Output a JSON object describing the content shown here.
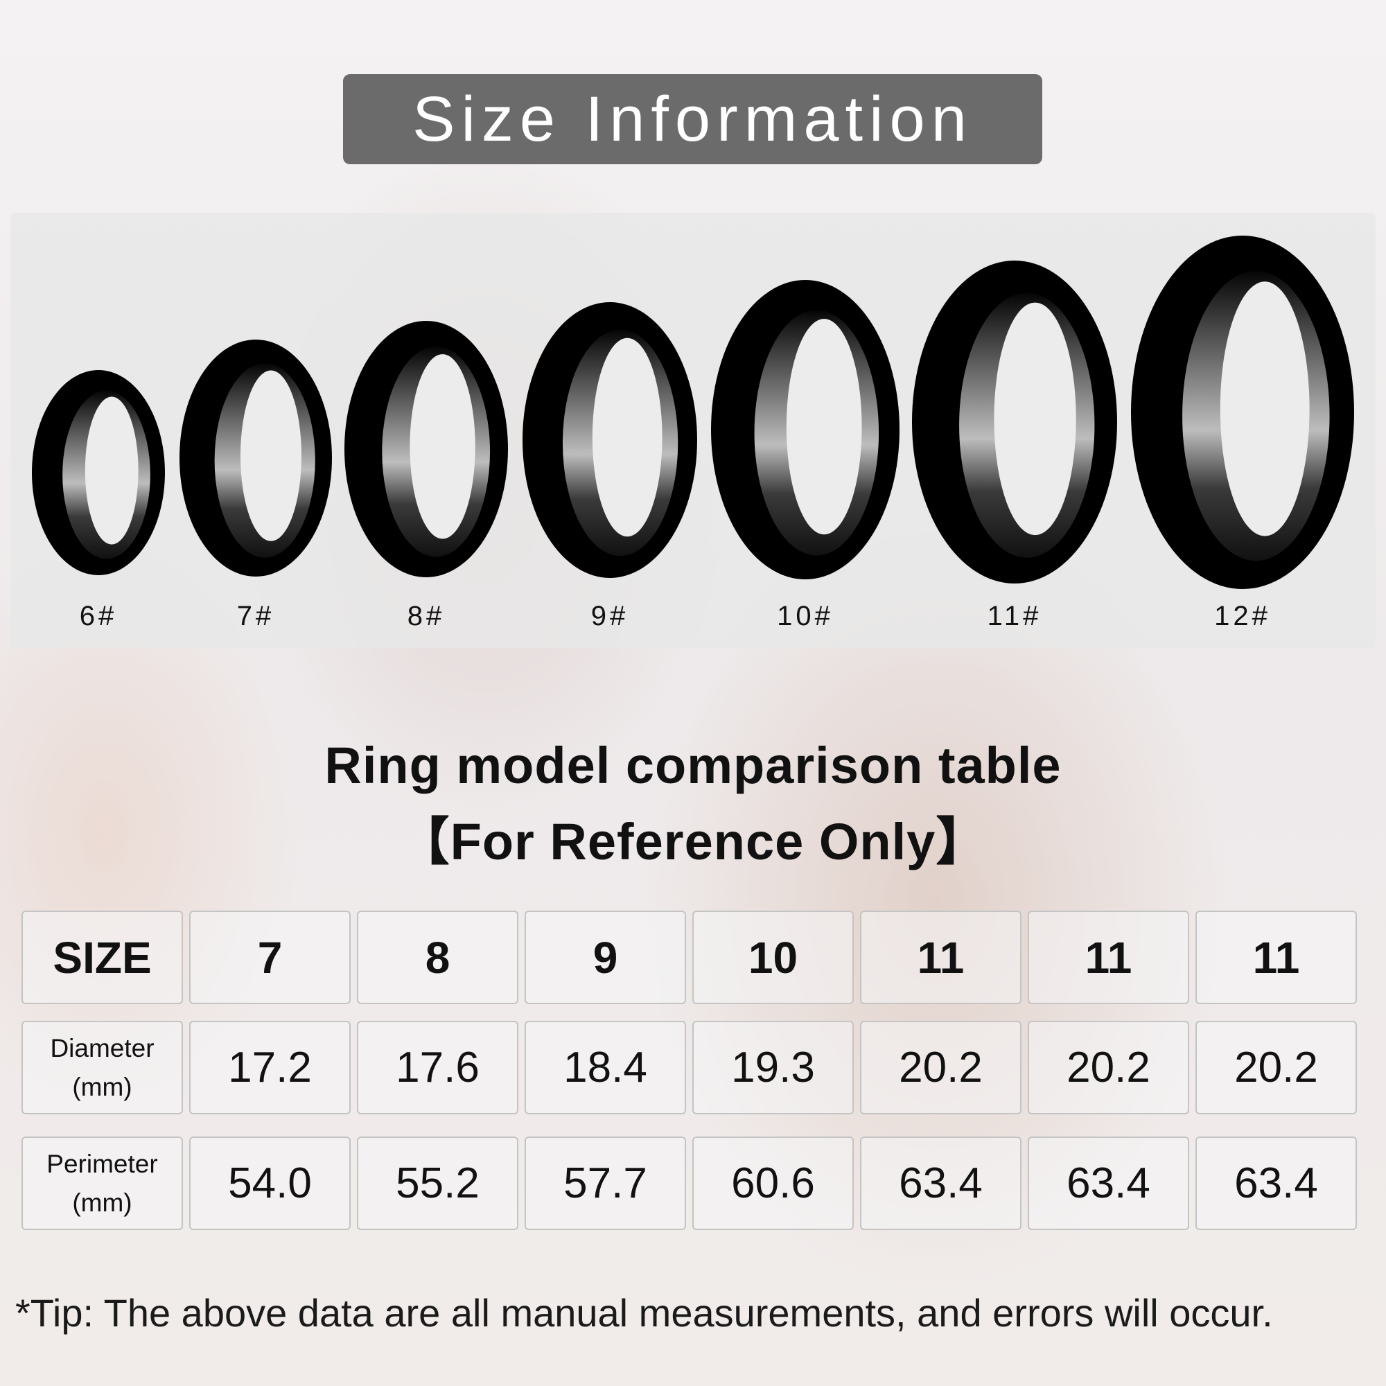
{
  "title": "Size Information",
  "rings": [
    "6#",
    "7#",
    "8#",
    "9#",
    "10#",
    "11#",
    "12#"
  ],
  "heading": {
    "line1": "Ring model comparison table",
    "line2": "【For Reference Only】"
  },
  "table": {
    "size_label": "SIZE",
    "sizes": [
      "7",
      "8",
      "9",
      "10",
      "11",
      "11",
      "11"
    ],
    "diameter_label": "Diameter",
    "perimeter_label": "Perimeter",
    "unit": "(mm)",
    "diameter": [
      "17.2",
      "17.6",
      "18.4",
      "19.3",
      "20.2",
      "20.2",
      "20.2"
    ],
    "perimeter": [
      "54.0",
      "55.2",
      "57.7",
      "60.6",
      "63.4",
      "63.4",
      "63.4"
    ]
  },
  "tip": "*Tip: The above data are all manual measurements, and errors will occur.",
  "colors": {
    "title_bg": "#6b6b6b",
    "ring": "#000000"
  }
}
